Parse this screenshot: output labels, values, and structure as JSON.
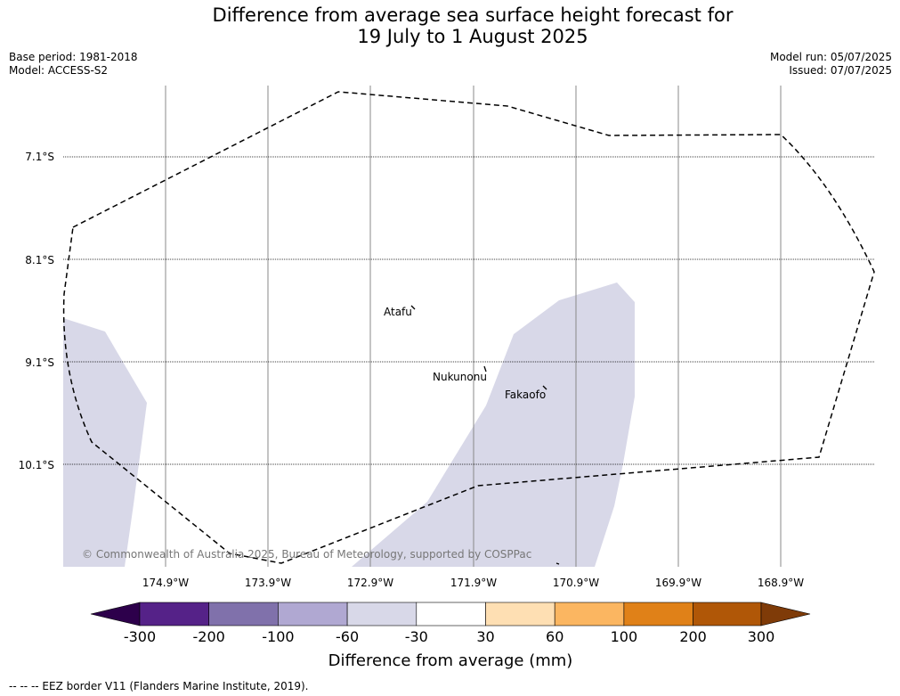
{
  "title": {
    "line1": "Difference from average sea surface height forecast for",
    "line2": "19 July to 1 August 2025"
  },
  "meta": {
    "base_period": "Base period: 1981-2018",
    "model": "Model: ACCESS-S2",
    "model_run": "Model run: 05/07/2025",
    "issued": "Issued: 07/07/2025"
  },
  "map": {
    "lat_labels": [
      "7.1°S",
      "8.1°S",
      "9.1°S",
      "10.1°S"
    ],
    "lon_labels": [
      "174.9°W",
      "173.9°W",
      "172.9°W",
      "171.9°W",
      "170.9°W",
      "169.9°W",
      "168.9°W"
    ],
    "places": [
      {
        "name": "Atafu"
      },
      {
        "name": "Nukunonu"
      },
      {
        "name": "Fakaofo"
      }
    ],
    "copyright": "© Commonwealth of Australia 2025, Bureau of Meteorology, supported by COSPPac",
    "anomaly_fill_color": "#d8d8e8",
    "eez_line_style": "dashed"
  },
  "colorbar": {
    "tick_labels": [
      "-300",
      "-200",
      "-100",
      "-60",
      "-30",
      "30",
      "60",
      "100",
      "200",
      "300"
    ],
    "colors": [
      "#552288",
      "#8071ab",
      "#b0a8d2",
      "#d8d8e8",
      "#ffffff",
      "#fedfb3",
      "#fbb661",
      "#e08118",
      "#b05707"
    ],
    "extend_low_color": "#2d004b",
    "extend_high_color": "#7f3b08",
    "label": "Difference from average (mm)"
  },
  "footer": {
    "legend": "--  --  -- EEZ border V11 (Flanders Marine Institute, 2019)."
  }
}
